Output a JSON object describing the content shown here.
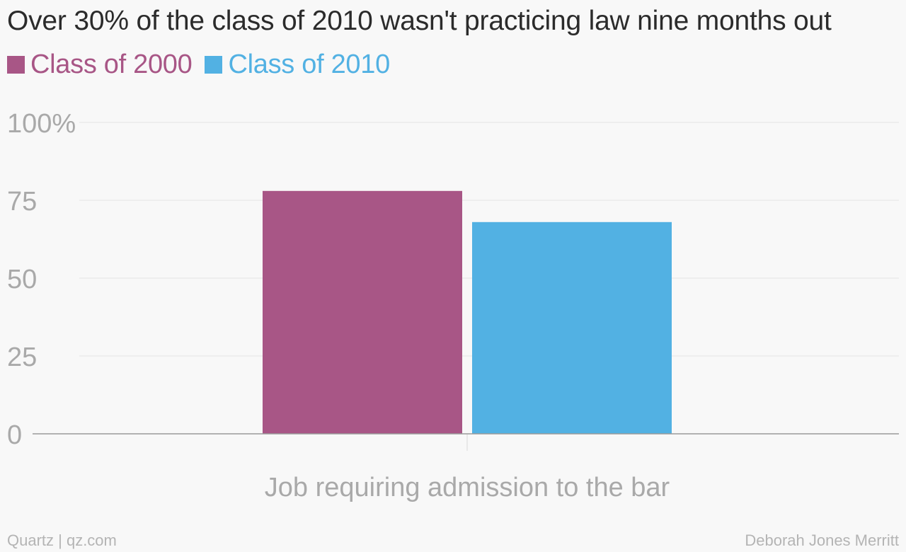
{
  "chart_data": {
    "type": "bar",
    "title": "Over 30% of the class of 2010 wasn't practicing law nine months out",
    "categories": [
      "Job requiring admission to the bar"
    ],
    "series": [
      {
        "name": "Class of 2000",
        "values": [
          78
        ],
        "color": "#a85686"
      },
      {
        "name": "Class of 2010",
        "values": [
          68
        ],
        "color": "#52b1e3"
      }
    ],
    "ylim": [
      0,
      100
    ],
    "yticks": [
      {
        "value": 0,
        "label": "0"
      },
      {
        "value": 25,
        "label": "25"
      },
      {
        "value": 50,
        "label": "50"
      },
      {
        "value": 75,
        "label": "75"
      },
      {
        "value": 100,
        "label": "100%"
      }
    ],
    "grid": true,
    "legend_position": "top-left",
    "xlabel": "",
    "ylabel": ""
  },
  "footer": {
    "source": "Quartz | qz.com",
    "credit": "Deborah Jones Merritt"
  },
  "colors": {
    "background": "#f8f8f8",
    "title": "#2b2b2b",
    "tick_label": "#a9a9a9",
    "gridline": "#e4e4e4",
    "axis": "#9a9a9a"
  }
}
